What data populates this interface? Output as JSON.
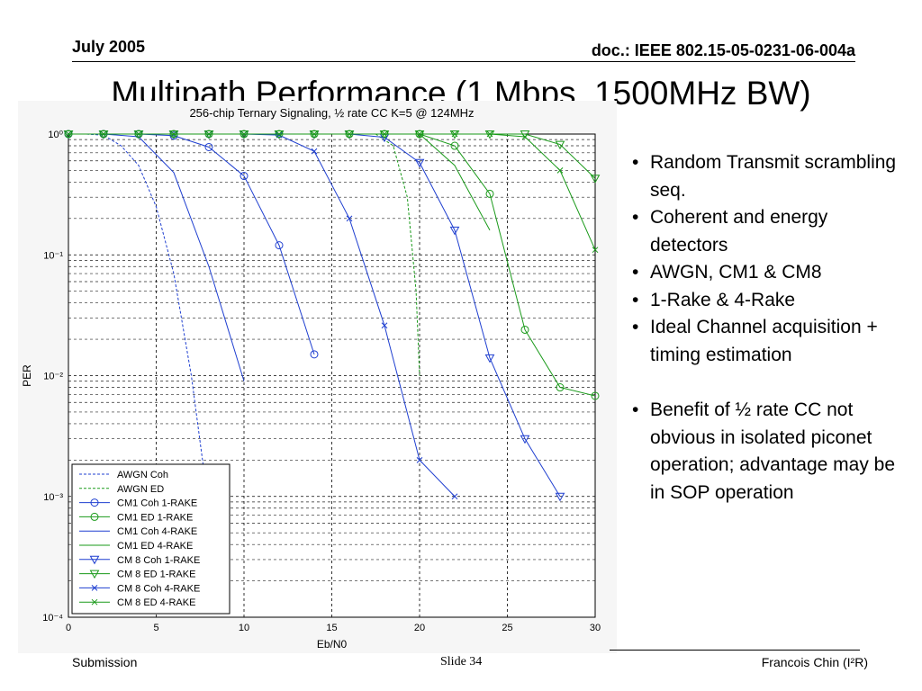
{
  "header": {
    "date": "July 2005",
    "doc_id": "doc.: IEEE 802.15-05-0231-06-004a"
  },
  "slide_title": "Multipath Performance (1 Mbps, 1500MHz BW)",
  "bullets": [
    "Random Transmit scrambling seq.",
    "Coherent and energy detectors",
    "AWGN, CM1 & CM8",
    "1-Rake & 4-Rake",
    "Ideal Channel acquisition + timing estimation",
    "Benefit of ½ rate CC not obvious in isolated piconet operation; advantage may be in SOP operation"
  ],
  "footer": {
    "left": "Submission",
    "center": "Slide 34",
    "right": "Francois Chin (I²R)"
  },
  "chart_data": {
    "type": "line",
    "title": "256-chip Ternary Signaling, ½ rate CC K=5 @ 124MHz",
    "xlabel": "Eb/N0",
    "ylabel": "PER",
    "xlim": [
      0,
      30
    ],
    "ylim": [
      0.0001,
      1
    ],
    "yscale": "log",
    "x_ticks": [
      0,
      5,
      10,
      15,
      20,
      25,
      30
    ],
    "y_ticks": [
      1,
      0.1,
      0.01,
      0.001,
      0.0001
    ],
    "y_tick_labels": [
      "10⁰",
      "10⁻¹",
      "10⁻²",
      "10⁻³",
      "10⁻⁴"
    ],
    "grid": true,
    "legend_position": "bottom-left",
    "series": [
      {
        "name": "AWGN Coh",
        "color": "#1f3fd0",
        "dash": "dashed",
        "marker": "none",
        "x": [
          0,
          1,
          2,
          3,
          4,
          5,
          6,
          7,
          7.7
        ],
        "y": [
          1.0,
          1.0,
          0.98,
          0.8,
          0.55,
          0.25,
          0.07,
          0.01,
          0.0017
        ]
      },
      {
        "name": "AWGN ED",
        "color": "#1a9a1a",
        "dash": "dashed",
        "marker": "none",
        "x": [
          8,
          10,
          12,
          14,
          16,
          17.5,
          18.5,
          19.3,
          19.8,
          20.0
        ],
        "y": [
          1.0,
          1.0,
          1.0,
          1.0,
          1.0,
          1.0,
          0.8,
          0.3,
          0.05,
          0.01
        ]
      },
      {
        "name": "CM1 Coh 1-RAKE",
        "color": "#1f3fd0",
        "dash": "solid",
        "marker": "circle",
        "x": [
          0,
          2,
          4,
          6,
          8,
          10,
          12,
          14
        ],
        "y": [
          1.0,
          1.0,
          1.0,
          0.97,
          0.78,
          0.45,
          0.12,
          0.015
        ]
      },
      {
        "name": "CM1 ED 1-RAKE",
        "color": "#1a9a1a",
        "dash": "solid",
        "marker": "circle",
        "x": [
          0,
          2,
          4,
          6,
          8,
          10,
          12,
          14,
          16,
          18,
          20,
          22,
          24,
          26,
          28,
          30
        ],
        "y": [
          1.0,
          1.0,
          1.0,
          1.0,
          1.0,
          1.0,
          1.0,
          1.0,
          1.0,
          1.0,
          1.0,
          0.8,
          0.32,
          0.024,
          0.008,
          0.0068
        ]
      },
      {
        "name": "CM1 Coh 4-RAKE",
        "color": "#1f3fd0",
        "dash": "solid",
        "marker": "none",
        "x": [
          0,
          2,
          4,
          6,
          8,
          10
        ],
        "y": [
          1.0,
          1.0,
          0.95,
          0.48,
          0.08,
          0.009
        ]
      },
      {
        "name": "CM1 ED 4-RAKE",
        "color": "#1a9a1a",
        "dash": "solid",
        "marker": "none",
        "x": [
          0,
          2,
          4,
          6,
          8,
          10,
          12,
          14,
          16,
          18,
          20,
          22,
          24
        ],
        "y": [
          1.0,
          1.0,
          1.0,
          1.0,
          1.0,
          1.0,
          1.0,
          1.0,
          1.0,
          1.0,
          1.0,
          0.55,
          0.16
        ]
      },
      {
        "name": "CM 8 Coh 1-RAKE",
        "color": "#1f3fd0",
        "dash": "solid",
        "marker": "triangle",
        "x": [
          0,
          2,
          4,
          6,
          8,
          10,
          12,
          14,
          16,
          18,
          20,
          22,
          24,
          26,
          28
        ],
        "y": [
          1.0,
          1.0,
          1.0,
          1.0,
          1.0,
          1.0,
          1.0,
          1.0,
          1.0,
          0.94,
          0.58,
          0.16,
          0.014,
          0.003,
          0.001
        ]
      },
      {
        "name": "CM 8 ED 1-RAKE",
        "color": "#1a9a1a",
        "dash": "solid",
        "marker": "triangle",
        "x": [
          0,
          2,
          4,
          6,
          8,
          10,
          12,
          14,
          16,
          18,
          20,
          22,
          24,
          26,
          28,
          30
        ],
        "y": [
          1.0,
          1.0,
          1.0,
          1.0,
          1.0,
          1.0,
          1.0,
          1.0,
          1.0,
          1.0,
          1.0,
          1.0,
          1.0,
          1.0,
          0.82,
          0.43
        ]
      },
      {
        "name": "CM 8 Coh 4-RAKE",
        "color": "#1f3fd0",
        "dash": "solid",
        "marker": "x",
        "x": [
          0,
          2,
          4,
          6,
          8,
          10,
          12,
          14,
          16,
          18,
          20,
          22
        ],
        "y": [
          1.0,
          1.0,
          1.0,
          1.0,
          1.0,
          1.0,
          0.98,
          0.72,
          0.2,
          0.026,
          0.002,
          0.001
        ]
      },
      {
        "name": "CM 8 ED 4-RAKE",
        "color": "#1a9a1a",
        "dash": "solid",
        "marker": "x",
        "x": [
          0,
          2,
          4,
          6,
          8,
          10,
          12,
          14,
          16,
          18,
          20,
          22,
          24,
          26,
          28,
          30
        ],
        "y": [
          1.0,
          1.0,
          1.0,
          1.0,
          1.0,
          1.0,
          1.0,
          1.0,
          1.0,
          1.0,
          1.0,
          1.0,
          1.0,
          0.95,
          0.5,
          0.11
        ]
      }
    ]
  }
}
